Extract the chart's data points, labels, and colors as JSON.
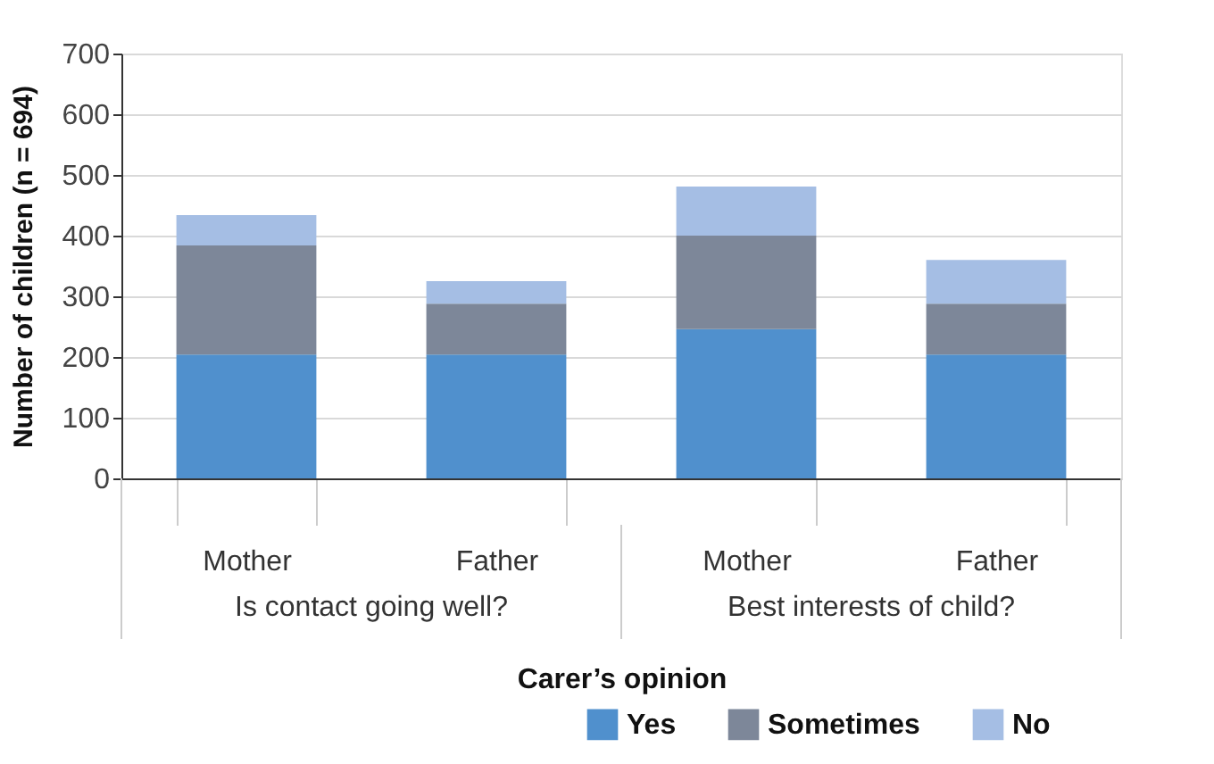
{
  "chart_data": {
    "type": "bar",
    "stacked": true,
    "xlabel": "Carer’s opinion",
    "ylabel": "Number of children (n = 694)",
    "categories": [
      "Mother",
      "Father",
      "Mother",
      "Father"
    ],
    "annotations": [
      "Is contact going well?",
      "Best interests of child?"
    ],
    "series": [
      {
        "name": "Yes",
        "color": "#5090cd",
        "values": [
          204,
          204,
          246,
          204
        ]
      },
      {
        "name": "Sometimes",
        "color": "#7d8799",
        "values": [
          180,
          84,
          154,
          84
        ]
      },
      {
        "name": "No",
        "color": "#a5bee4",
        "values": [
          50,
          37,
          81,
          72
        ]
      }
    ],
    "ylim": [
      0,
      700
    ],
    "yticks": [
      0,
      100,
      200,
      300,
      400,
      500,
      600,
      700
    ],
    "grid": "y",
    "legend": "bottom right"
  }
}
